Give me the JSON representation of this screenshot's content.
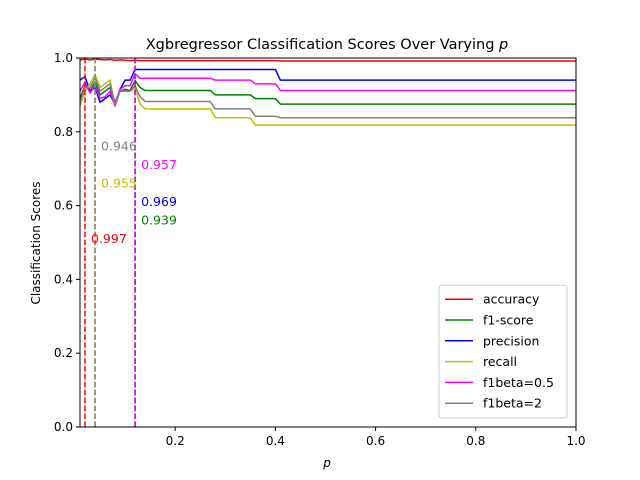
{
  "chart_data": {
    "type": "line",
    "title": "Xgbregressor Classification Scores Over Varying ",
    "title_var": "p",
    "xlabel": "p",
    "ylabel": "Classification Scores",
    "xlim": [
      0.01,
      1.0
    ],
    "ylim": [
      0.0,
      1.0
    ],
    "xticks": [
      "0.2",
      "0.4",
      "0.6",
      "0.8",
      "1.0"
    ],
    "yticks": [
      "0.0",
      "0.2",
      "0.4",
      "0.6",
      "0.8",
      "1.0"
    ],
    "grid": false,
    "legend_position": "lower-right",
    "x": [
      0.01,
      0.02,
      0.03,
      0.04,
      0.05,
      0.06,
      0.07,
      0.08,
      0.09,
      0.1,
      0.11,
      0.12,
      0.13,
      0.14,
      0.27,
      0.28,
      0.35,
      0.36,
      0.4,
      0.41,
      1.0
    ],
    "series": [
      {
        "name": "accuracy",
        "color": "#ff0000",
        "values": [
          0.995,
          0.997,
          0.995,
          0.997,
          0.996,
          0.995,
          0.996,
          0.994,
          0.995,
          0.994,
          0.993,
          0.994,
          0.993,
          0.993,
          0.993,
          0.993,
          0.993,
          0.993,
          0.993,
          0.992,
          0.992
        ]
      },
      {
        "name": "f1-score",
        "color": "#008000",
        "values": [
          0.89,
          0.925,
          0.91,
          0.935,
          0.9,
          0.91,
          0.92,
          0.88,
          0.91,
          0.915,
          0.912,
          0.939,
          0.92,
          0.912,
          0.912,
          0.9,
          0.9,
          0.89,
          0.89,
          0.875,
          0.875
        ]
      },
      {
        "name": "precision",
        "color": "#0000ff",
        "values": [
          0.94,
          0.95,
          0.91,
          0.92,
          0.88,
          0.89,
          0.9,
          0.875,
          0.915,
          0.94,
          0.94,
          0.969,
          0.969,
          0.969,
          0.969,
          0.969,
          0.969,
          0.969,
          0.969,
          0.94,
          0.94
        ]
      },
      {
        "name": "recall",
        "color": "#bfbf00",
        "values": [
          0.87,
          0.91,
          0.93,
          0.955,
          0.92,
          0.93,
          0.94,
          0.87,
          0.91,
          0.91,
          0.91,
          0.92,
          0.875,
          0.862,
          0.862,
          0.838,
          0.838,
          0.818,
          0.818,
          0.818,
          0.818
        ]
      },
      {
        "name": "f1beta=0.5",
        "color": "#ff00ff",
        "values": [
          0.91,
          0.935,
          0.905,
          0.925,
          0.89,
          0.895,
          0.91,
          0.87,
          0.915,
          0.925,
          0.925,
          0.957,
          0.945,
          0.945,
          0.945,
          0.94,
          0.94,
          0.93,
          0.93,
          0.912,
          0.912
        ]
      },
      {
        "name": "f1beta=2",
        "color": "#808080",
        "values": [
          0.88,
          0.92,
          0.92,
          0.946,
          0.91,
          0.92,
          0.93,
          0.875,
          0.91,
          0.91,
          0.91,
          0.925,
          0.895,
          0.882,
          0.882,
          0.862,
          0.862,
          0.842,
          0.842,
          0.838,
          0.838
        ]
      }
    ],
    "vlines": [
      {
        "x": 0.02,
        "color": "#ff0000"
      },
      {
        "x": 0.04,
        "color": "#bfbf00"
      },
      {
        "x": 0.04,
        "color": "#808080"
      },
      {
        "x": 0.12,
        "color": "#0000ff"
      },
      {
        "x": 0.12,
        "color": "#008000"
      },
      {
        "x": 0.12,
        "color": "#ff00ff"
      }
    ],
    "annotations": [
      {
        "text": "0.946",
        "x": 0.04,
        "y": 0.76,
        "color": "#808080"
      },
      {
        "text": "0.955",
        "x": 0.04,
        "y": 0.66,
        "color": "#bfbf00"
      },
      {
        "text": "0.997",
        "x": 0.02,
        "y": 0.51,
        "color": "#ff0000"
      },
      {
        "text": "0.957",
        "x": 0.12,
        "y": 0.71,
        "color": "#ff00ff"
      },
      {
        "text": "0.969",
        "x": 0.12,
        "y": 0.61,
        "color": "#0000ff"
      },
      {
        "text": "0.939",
        "x": 0.12,
        "y": 0.56,
        "color": "#008000"
      }
    ]
  }
}
